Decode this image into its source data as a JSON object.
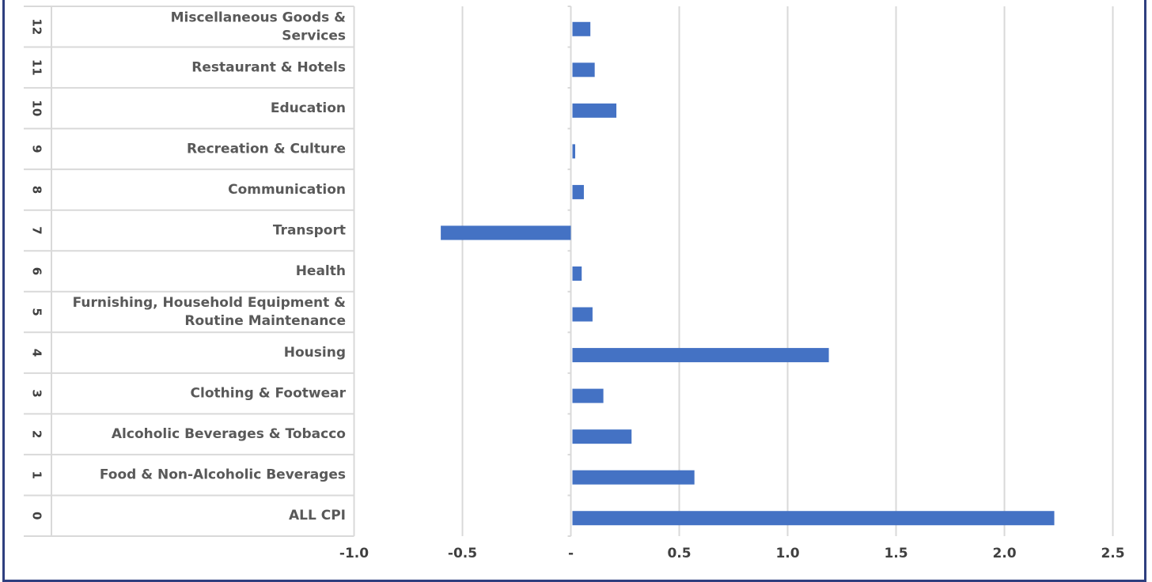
{
  "chart_data": {
    "type": "bar",
    "orientation": "horizontal",
    "categories": [
      {
        "num": "0",
        "label": [
          "ALL CPI"
        ]
      },
      {
        "num": "1",
        "label": [
          "Food & Non-Alcoholic Beverages"
        ]
      },
      {
        "num": "2",
        "label": [
          "Alcoholic Beverages & Tobacco"
        ]
      },
      {
        "num": "3",
        "label": [
          "Clothing & Footwear"
        ]
      },
      {
        "num": "4",
        "label": [
          "Housing"
        ]
      },
      {
        "num": "5",
        "label": [
          "Furnishing, Household Equipment &",
          "Routine Maintenance"
        ]
      },
      {
        "num": "6",
        "label": [
          "Health"
        ]
      },
      {
        "num": "7",
        "label": [
          "Transport"
        ]
      },
      {
        "num": "8",
        "label": [
          "Communication"
        ]
      },
      {
        "num": "9",
        "label": [
          "Recreation & Culture"
        ]
      },
      {
        "num": "10",
        "label": [
          "Education"
        ]
      },
      {
        "num": "11",
        "label": [
          "Restaurant & Hotels"
        ]
      },
      {
        "num": "12",
        "label": [
          "Miscellaneous Goods &",
          "Services"
        ]
      }
    ],
    "values": [
      2.23,
      0.57,
      0.28,
      0.15,
      1.19,
      0.1,
      0.05,
      -0.6,
      0.06,
      0.02,
      0.21,
      0.11,
      0.09
    ],
    "xlim": [
      -1.0,
      2.5
    ],
    "xticks": [
      -1.0,
      -0.5,
      0,
      0.5,
      1.0,
      1.5,
      2.0,
      2.5
    ],
    "xtick_labels": [
      "-1.0",
      "-0.5",
      "-",
      "0.5",
      "1.0",
      "1.5",
      "2.0",
      "2.5"
    ],
    "grid": true,
    "legend": "none",
    "colors": {
      "bar": "#4472C4",
      "grid": "#D9D9D9",
      "border": "#2F3F7F"
    }
  }
}
